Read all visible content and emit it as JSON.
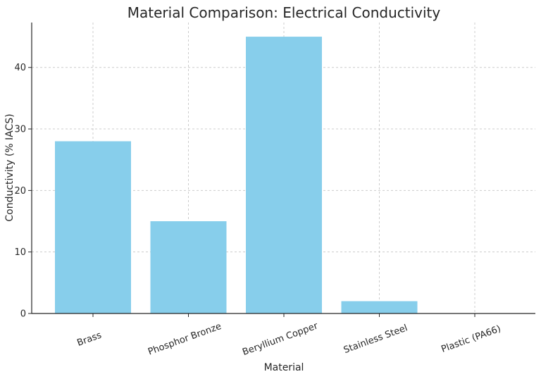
{
  "chart_data": {
    "type": "bar",
    "title": "Material Comparison: Electrical Conductivity",
    "xlabel": "Material",
    "ylabel": "Conductivity (% IACS)",
    "categories": [
      "Brass",
      "Phosphor Bronze",
      "Beryllium Copper",
      "Stainless Steel",
      "Plastic (PA66)"
    ],
    "values": [
      28,
      15,
      45,
      2,
      0
    ],
    "ylim": [
      0,
      47.3
    ],
    "yticks": [
      "0",
      "10",
      "20",
      "30",
      "40"
    ],
    "grid": true,
    "bar_color": "#87ceeb"
  }
}
